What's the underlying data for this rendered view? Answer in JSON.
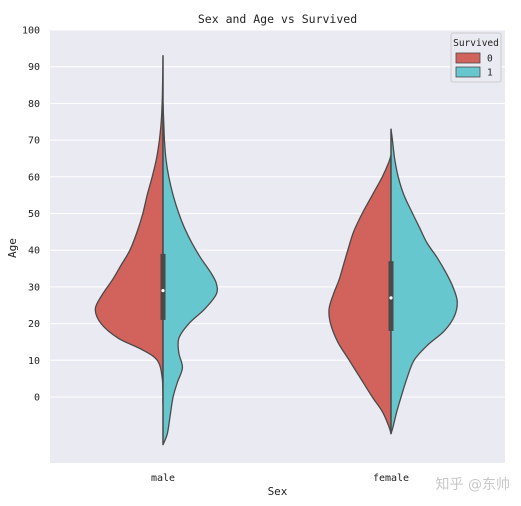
{
  "chart_data": {
    "type": "violin",
    "split": true,
    "title": "Sex and Age vs Survived",
    "xlabel": "Sex",
    "ylabel": "Age",
    "categories": [
      "male",
      "female"
    ],
    "ylim": [
      -18,
      100
    ],
    "yticks": [
      0,
      10,
      20,
      30,
      40,
      50,
      60,
      70,
      80,
      90,
      100
    ],
    "grid": true,
    "legend": {
      "title": "Survived",
      "placement": "top-right",
      "entries": [
        "0",
        "1"
      ]
    },
    "series": [
      {
        "name": "0",
        "color": "#d1625c",
        "side": "left",
        "profiles": [
          {
            "category": "male",
            "min_age": -2,
            "max_age": 93,
            "density": [
              [
                -2,
                0
              ],
              [
                5,
                0.01
              ],
              [
                10,
                0.08
              ],
              [
                13,
                0.3
              ],
              [
                16,
                0.62
              ],
              [
                20,
                0.86
              ],
              [
                24,
                0.94
              ],
              [
                28,
                0.84
              ],
              [
                32,
                0.7
              ],
              [
                36,
                0.58
              ],
              [
                40,
                0.46
              ],
              [
                45,
                0.36
              ],
              [
                50,
                0.28
              ],
              [
                55,
                0.22
              ],
              [
                60,
                0.15
              ],
              [
                65,
                0.09
              ],
              [
                70,
                0.05
              ],
              [
                75,
                0.025
              ],
              [
                80,
                0.012
              ],
              [
                85,
                0.006
              ],
              [
                90,
                0.002
              ],
              [
                93,
                0
              ]
            ]
          },
          {
            "category": "female",
            "min_age": -10,
            "max_age": 66,
            "density": [
              [
                -10,
                0
              ],
              [
                -8,
                0.03
              ],
              [
                -4,
                0.12
              ],
              [
                0,
                0.26
              ],
              [
                5,
                0.42
              ],
              [
                10,
                0.58
              ],
              [
                15,
                0.74
              ],
              [
                20,
                0.84
              ],
              [
                24,
                0.86
              ],
              [
                28,
                0.8
              ],
              [
                32,
                0.72
              ],
              [
                36,
                0.66
              ],
              [
                40,
                0.6
              ],
              [
                45,
                0.52
              ],
              [
                50,
                0.4
              ],
              [
                55,
                0.26
              ],
              [
                60,
                0.12
              ],
              [
                64,
                0.03
              ],
              [
                66,
                0
              ]
            ]
          }
        ]
      },
      {
        "name": "1",
        "color": "#67c7cf",
        "side": "right",
        "profiles": [
          {
            "category": "male",
            "min_age": -13,
            "max_age": 80,
            "density": [
              [
                -13,
                0
              ],
              [
                -10,
                0.06
              ],
              [
                -5,
                0.1
              ],
              [
                0,
                0.14
              ],
              [
                4,
                0.2
              ],
              [
                8,
                0.27
              ],
              [
                12,
                0.22
              ],
              [
                16,
                0.22
              ],
              [
                20,
                0.36
              ],
              [
                24,
                0.58
              ],
              [
                28,
                0.74
              ],
              [
                31,
                0.74
              ],
              [
                34,
                0.66
              ],
              [
                38,
                0.52
              ],
              [
                42,
                0.4
              ],
              [
                46,
                0.3
              ],
              [
                50,
                0.22
              ],
              [
                55,
                0.14
              ],
              [
                60,
                0.08
              ],
              [
                65,
                0.04
              ],
              [
                70,
                0.02
              ],
              [
                75,
                0.01
              ],
              [
                80,
                0
              ]
            ]
          },
          {
            "category": "female",
            "min_age": -10,
            "max_age": 73,
            "density": [
              [
                -10,
                0
              ],
              [
                -8,
                0.03
              ],
              [
                -4,
                0.08
              ],
              [
                0,
                0.14
              ],
              [
                5,
                0.22
              ],
              [
                10,
                0.32
              ],
              [
                14,
                0.5
              ],
              [
                18,
                0.74
              ],
              [
                22,
                0.88
              ],
              [
                26,
                0.92
              ],
              [
                30,
                0.86
              ],
              [
                34,
                0.76
              ],
              [
                38,
                0.64
              ],
              [
                42,
                0.5
              ],
              [
                46,
                0.4
              ],
              [
                50,
                0.3
              ],
              [
                55,
                0.18
              ],
              [
                60,
                0.1
              ],
              [
                65,
                0.05
              ],
              [
                70,
                0.02
              ],
              [
                73,
                0
              ]
            ]
          }
        ]
      }
    ],
    "box": [
      {
        "category": "male",
        "q1": 21,
        "median": 29,
        "q3": 39
      },
      {
        "category": "female",
        "q1": 18,
        "median": 27,
        "q3": 37
      }
    ]
  },
  "watermark": "知乎 @东帅"
}
